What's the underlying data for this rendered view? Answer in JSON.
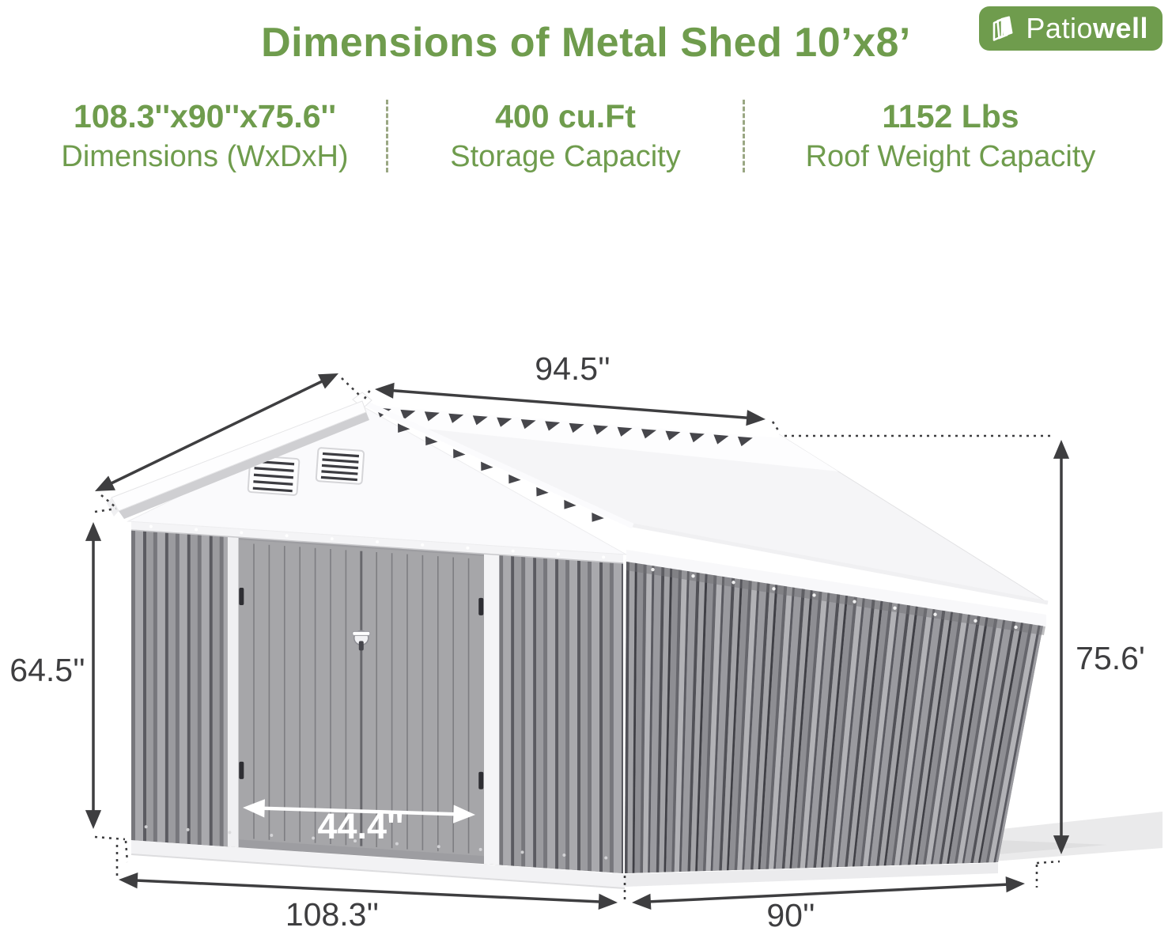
{
  "theme": {
    "accent_green": "#6f9c4d",
    "divider_olive": "#9aa783",
    "arrow_dark": "#3e3e40",
    "door_arrow_white": "#ffffff"
  },
  "header": {
    "title": "Dimensions of Metal Shed 10’x8’"
  },
  "logo": {
    "text_regular": "Patio",
    "text_bold": "well",
    "icon": "fanned-pages-icon"
  },
  "specs": [
    {
      "value": "108.3''x90''x75.6''",
      "label": "Dimensions (WxDxH)"
    },
    {
      "value": "400 cu.Ft",
      "label": "Storage Capacity"
    },
    {
      "value": "1152 Lbs",
      "label": "Roof Weight Capacity"
    }
  ],
  "diagram": {
    "ridge_length": "94.5''",
    "wall_height": "64.5''",
    "overall_height": "75.6'",
    "door_width": "44.4''",
    "front_width": "108.3''",
    "side_depth": "90''"
  }
}
